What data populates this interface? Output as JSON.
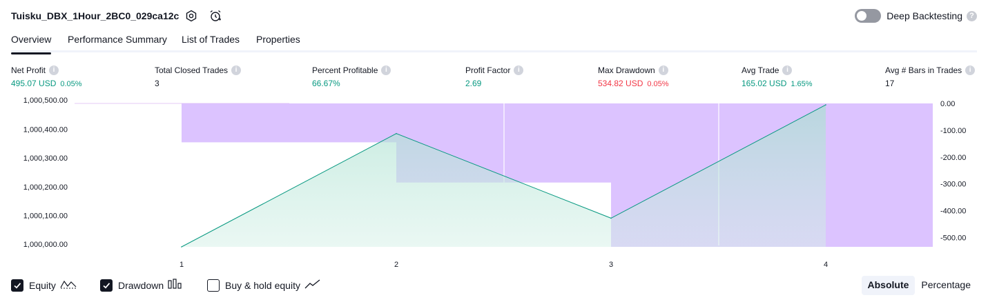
{
  "header": {
    "title": "Tuisku_DBX_1Hour_2BC0_029ca12c",
    "deep_backtesting_label": "Deep Backtesting",
    "deep_backtesting_enabled": false,
    "help": "?"
  },
  "tabs": [
    {
      "label": "Overview",
      "active": true
    },
    {
      "label": "Performance Summary",
      "active": false
    },
    {
      "label": "List of Trades",
      "active": false
    },
    {
      "label": "Properties",
      "active": false
    }
  ],
  "metrics": [
    {
      "label": "Net Profit",
      "value": "495.07 USD",
      "pct": "0.05%",
      "color": "#089981"
    },
    {
      "label": "Total Closed Trades",
      "value": "3",
      "pct": "",
      "color": "#131722"
    },
    {
      "label": "Percent Profitable",
      "value": "66.67%",
      "pct": "",
      "color": "#089981"
    },
    {
      "label": "Profit Factor",
      "value": "2.69",
      "pct": "",
      "color": "#089981"
    },
    {
      "label": "Max Drawdown",
      "value": "534.82 USD",
      "pct": "0.05%",
      "color": "#f23645"
    },
    {
      "label": "Avg Trade",
      "value": "165.02 USD",
      "pct": "1.65%",
      "color": "#089981"
    },
    {
      "label": "Avg # Bars in Trades",
      "value": "17",
      "pct": "",
      "color": "#131722"
    }
  ],
  "chart_data": {
    "type": "line",
    "x": [
      1,
      2,
      3,
      4
    ],
    "xticks": [
      "1",
      "2",
      "3",
      "4"
    ],
    "series": [
      {
        "name": "Equity",
        "type": "area",
        "axis": "left",
        "values": [
          1000000.0,
          1000395.0,
          1000100.0,
          1000495.07
        ],
        "color": "#089981"
      },
      {
        "name": "Drawdown",
        "type": "bar",
        "axis": "right",
        "x": [
          1.5,
          2.5,
          3.5,
          4.5
        ],
        "values": [
          -145,
          -295,
          -534.82,
          -534.82
        ],
        "color": "#d6b8ff"
      }
    ],
    "left_axis": {
      "ylim": [
        1000000,
        1000500
      ],
      "ticks": [
        "1,000,500.00",
        "1,000,400.00",
        "1,000,300.00",
        "1,000,200.00",
        "1,000,100.00",
        "1,000,000.00"
      ]
    },
    "right_axis": {
      "ylim": [
        -534.82,
        0
      ],
      "ticks": [
        "0.00",
        "-100.00",
        "-200.00",
        "-300.00",
        "-400.00",
        "-500.00"
      ]
    },
    "grid": false
  },
  "footer": {
    "checkboxes": [
      {
        "label": "Equity",
        "checked": true,
        "icon": "equity-icon"
      },
      {
        "label": "Drawdown",
        "checked": true,
        "icon": "drawdown-icon"
      },
      {
        "label": "Buy & hold equity",
        "checked": false,
        "icon": "buy-hold-icon"
      }
    ],
    "segments": [
      {
        "label": "Absolute",
        "active": true
      },
      {
        "label": "Percentage",
        "active": false
      }
    ]
  }
}
